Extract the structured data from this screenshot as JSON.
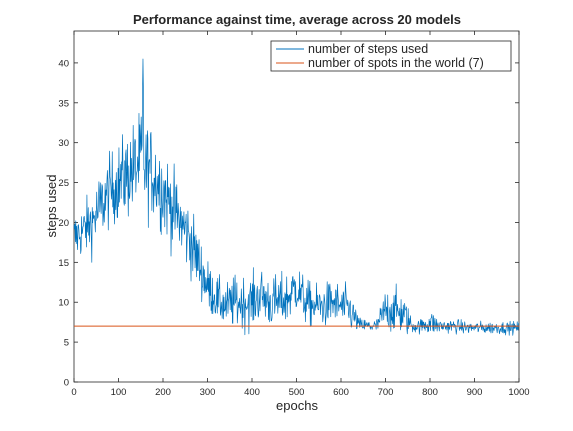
{
  "chart_data": {
    "type": "line",
    "title": "Performance against time, average across 20 models",
    "xlabel": "epochs",
    "ylabel": "steps used",
    "xlim": [
      0,
      1000
    ],
    "ylim": [
      0,
      44
    ],
    "x_ticks": [
      0,
      100,
      200,
      300,
      400,
      500,
      600,
      700,
      800,
      900,
      1000
    ],
    "y_ticks": [
      0,
      5,
      10,
      15,
      20,
      25,
      30,
      35,
      40
    ],
    "x_tick_labels": [
      "0",
      "100",
      "200",
      "300",
      "400",
      "500",
      "600",
      "700",
      "800",
      "900",
      "1000"
    ],
    "y_tick_labels": [
      "0",
      "5",
      "10",
      "15",
      "20",
      "25",
      "30",
      "35",
      "40"
    ],
    "grid": false,
    "legend_position": "top-right",
    "series": [
      {
        "name": "number of steps used",
        "color": "#0072BD",
        "style": "noisy line, one value per epoch",
        "x": [
          0,
          20,
          40,
          60,
          80,
          100,
          120,
          140,
          152,
          160,
          180,
          200,
          220,
          240,
          260,
          280,
          300,
          320,
          340,
          360,
          380,
          400,
          420,
          440,
          460,
          480,
          500,
          520,
          540,
          560,
          580,
          600,
          620,
          640,
          660,
          680,
          700,
          720,
          740,
          760,
          780,
          800,
          820,
          840,
          860,
          880,
          900,
          920,
          940,
          960,
          980,
          1000
        ],
        "mean": [
          18,
          19,
          20,
          22,
          24,
          25,
          26,
          27,
          28,
          27,
          26,
          24,
          22,
          20,
          18,
          15,
          12,
          10.5,
          9.5,
          10,
          10,
          10,
          11,
          10,
          10,
          10.5,
          12,
          10,
          9.5,
          9.5,
          10,
          9.5,
          9,
          7.2,
          7,
          7,
          9,
          9,
          8.5,
          7,
          7,
          7.5,
          7,
          7,
          7,
          6.8,
          6.8,
          6.8,
          6.8,
          6.8,
          6.8,
          6.8
        ],
        "spread": [
          3,
          3,
          3.5,
          4,
          4,
          4.5,
          5,
          5.5,
          5.5,
          5.5,
          5,
          5,
          4.5,
          4,
          4,
          3.5,
          3,
          2.5,
          2.5,
          3,
          3,
          3,
          3,
          3,
          3,
          3,
          3,
          2.5,
          2.5,
          2.5,
          2.5,
          2.5,
          2.5,
          0.8,
          0.8,
          0.8,
          2.5,
          2.5,
          2.5,
          0.8,
          0.8,
          1.5,
          0.8,
          0.8,
          0.8,
          0.7,
          0.7,
          0.7,
          0.7,
          0.7,
          0.7,
          0.7
        ],
        "min": 5.2,
        "max": 40.5,
        "peak": {
          "x": 155,
          "y": 40.5
        }
      },
      {
        "name": "number of spots in the world (7)",
        "color": "#D95319",
        "style": "constant horizontal line",
        "x": [
          0,
          1000
        ],
        "values": [
          7,
          7
        ]
      }
    ]
  }
}
